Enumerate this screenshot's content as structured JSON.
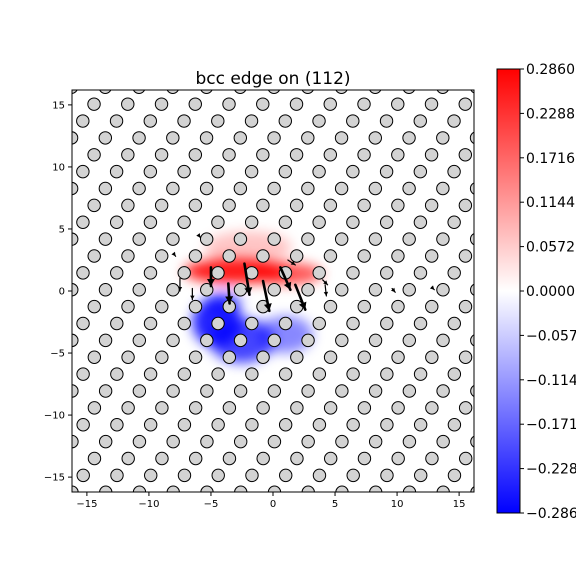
{
  "chart_data": {
    "type": "heatmap",
    "title": "bcc edge on (112)",
    "xlabel": "",
    "ylabel": "",
    "xlim": [
      -16.2,
      16.2
    ],
    "ylim": [
      -16.2,
      16.2
    ],
    "x_ticks": [
      -15,
      -10,
      -5,
      0,
      5,
      10,
      15
    ],
    "y_ticks": [
      -15,
      -10,
      -5,
      0,
      5,
      10,
      15
    ],
    "x_tick_labels": [
      "−15",
      "−10",
      "−5",
      "0",
      "5",
      "10",
      "15"
    ],
    "y_tick_labels": [
      "−15",
      "−10",
      "−5",
      "0",
      "5",
      "10",
      "15"
    ],
    "grid": false,
    "colormap": "bwr",
    "colorbar": {
      "range": [
        -0.286,
        0.286
      ],
      "ticks": [
        0.286,
        0.2288,
        0.1716,
        0.1144,
        0.0572,
        0.0,
        -0.0572,
        -0.1144,
        -0.1716,
        -0.2288,
        -0.286
      ],
      "tick_labels": [
        "0.2860",
        "0.2288",
        "0.1716",
        "0.1144",
        "0.0572",
        "0.0000",
        "−0.0572",
        "−0.1144",
        "−0.1716",
        "−0.2288",
        "−0.2860"
      ]
    },
    "atom_lattice": {
      "a1": [
        2.72,
        0
      ],
      "a2": [
        0.905,
        1.36
      ],
      "origin": [
        0.1,
        0.1
      ],
      "marker": "circle",
      "fill": "#d3d3d3",
      "edge": "#000000"
    },
    "strain_regions": [
      {
        "x": -3.0,
        "y": 1.6,
        "sx": 4.2,
        "sy": 1.0,
        "amplitude": 0.27
      },
      {
        "x": 1.0,
        "y": 1.4,
        "sx": 3.0,
        "sy": 0.9,
        "amplitude": 0.2
      },
      {
        "x": -2.0,
        "y": 3.5,
        "sx": 3.5,
        "sy": 1.3,
        "amplitude": 0.07
      },
      {
        "x": -4.5,
        "y": -2.5,
        "sx": 2.0,
        "sy": 2.0,
        "amplitude": -0.26
      },
      {
        "x": -2.5,
        "y": -4.0,
        "sx": 2.6,
        "sy": 1.8,
        "amplitude": -0.22
      },
      {
        "x": 1.0,
        "y": -3.5,
        "sx": 2.2,
        "sy": 1.5,
        "amplitude": -0.14
      },
      {
        "x": -4.0,
        "y": -1.0,
        "sx": 1.5,
        "sy": 1.0,
        "amplitude": -0.15
      }
    ],
    "displacement_arrows": [
      {
        "x": -2.3,
        "y": 2.2,
        "dx": 0.4,
        "dy": -2.5,
        "bold": true
      },
      {
        "x": -0.8,
        "y": 0.8,
        "dx": 0.5,
        "dy": -2.4,
        "bold": true
      },
      {
        "x": 0.6,
        "y": 1.9,
        "dx": 0.8,
        "dy": -1.8,
        "bold": true
      },
      {
        "x": 1.8,
        "y": 0.5,
        "dx": 0.8,
        "dy": -2.0,
        "bold": true
      },
      {
        "x": -3.6,
        "y": 0.6,
        "dx": 0.1,
        "dy": -1.6,
        "bold": true
      },
      {
        "x": -5.0,
        "y": 1.9,
        "dx": 0.0,
        "dy": -1.5,
        "bold": true
      },
      {
        "x": -7.5,
        "y": 1.0,
        "dx": 0.0,
        "dy": -1.0,
        "bold": false
      },
      {
        "x": -6.5,
        "y": 0.2,
        "dx": 0.0,
        "dy": -0.9,
        "bold": false
      },
      {
        "x": 4.2,
        "y": 0.5,
        "dx": 0.1,
        "dy": -0.9,
        "bold": false
      },
      {
        "x": 3.5,
        "y": 1.8,
        "dx": 0.3,
        "dy": -0.8,
        "bold": false
      },
      {
        "x": 1.2,
        "y": 2.5,
        "dx": 0.6,
        "dy": -0.4,
        "bold": false
      },
      {
        "x": 4.0,
        "y": 0.9,
        "dx": 0.4,
        "dy": -0.4,
        "bold": false
      },
      {
        "x": -9.8,
        "y": 1.8,
        "dx": 0.3,
        "dy": -0.3,
        "bold": false
      },
      {
        "x": -10.6,
        "y": 0.4,
        "dx": 0.3,
        "dy": -0.3,
        "bold": false
      },
      {
        "x": 8.8,
        "y": 1.6,
        "dx": 0.25,
        "dy": -0.3,
        "bold": false
      },
      {
        "x": 9.6,
        "y": 0.2,
        "dx": 0.25,
        "dy": -0.3,
        "bold": false
      },
      {
        "x": -12.8,
        "y": 1.8,
        "dx": 0.2,
        "dy": -0.2,
        "bold": false
      },
      {
        "x": -13.5,
        "y": 0.3,
        "dx": 0.2,
        "dy": -0.2,
        "bold": false
      },
      {
        "x": 12.0,
        "y": 1.6,
        "dx": 0.2,
        "dy": -0.2,
        "bold": false
      },
      {
        "x": 12.8,
        "y": 0.3,
        "dx": 0.2,
        "dy": -0.2,
        "bold": false
      },
      {
        "x": -9.0,
        "y": -1.0,
        "dx": 0.15,
        "dy": -0.3,
        "bold": false
      },
      {
        "x": 7.0,
        "y": -1.0,
        "dx": 0.15,
        "dy": -0.3,
        "bold": false
      },
      {
        "x": -8.0,
        "y": 3.0,
        "dx": 0.15,
        "dy": -0.2,
        "bold": false
      },
      {
        "x": 7.5,
        "y": 3.0,
        "dx": 0.15,
        "dy": -0.2,
        "bold": false
      },
      {
        "x": -6.0,
        "y": 4.5,
        "dx": 0.15,
        "dy": -0.2,
        "bold": false
      },
      {
        "x": 5.5,
        "y": 4.5,
        "dx": 0.15,
        "dy": -0.2,
        "bold": false
      }
    ]
  }
}
